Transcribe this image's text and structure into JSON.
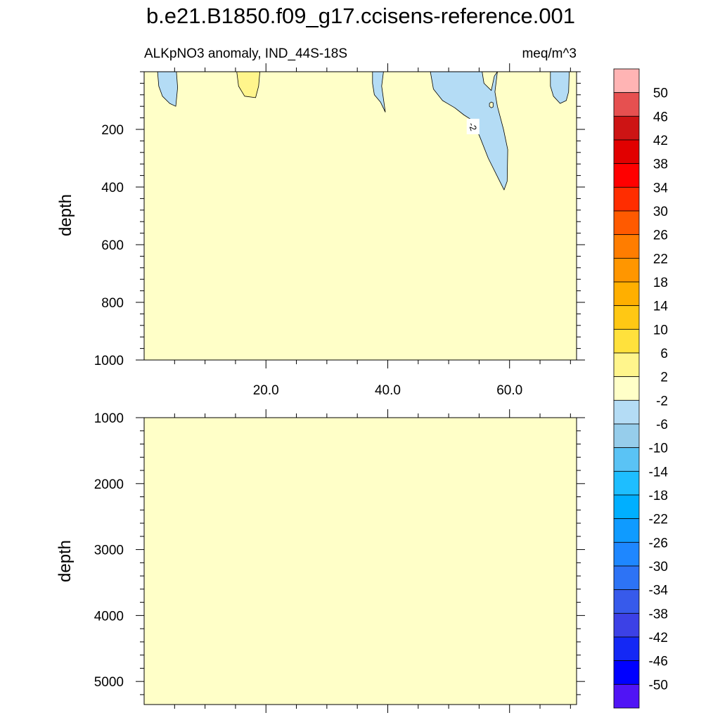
{
  "figure_title": "b.e21.B1850.f09_g17.ccisens-reference.001",
  "colors": {
    "background_fill": "#ffffc8",
    "contour_line": "#000000"
  },
  "chart_data": [
    {
      "type": "heatmap",
      "panel": "upper",
      "subtitle_left": "ALKpNO3 anomaly, IND_44S-18S",
      "subtitle_right": "meq/m^3",
      "ylabel": "depth",
      "xlabel": "",
      "xlim": [
        0,
        71
      ],
      "ylim": [
        1000,
        0
      ],
      "y_reversed": true,
      "x_ticks": [
        20,
        40,
        60
      ],
      "x_tick_labels": [
        "20.0",
        "40.0",
        "60.0"
      ],
      "y_ticks": [
        200,
        400,
        600,
        800,
        1000
      ],
      "y_tick_labels": [
        "200",
        "400",
        "600",
        "800",
        "1000"
      ],
      "contour_labels": [
        {
          "x": 54,
          "y": 190,
          "text": "-2"
        }
      ],
      "background_value_range": [
        -2,
        2
      ],
      "regions": [
        {
          "color": "#b4dcf5",
          "range": "-6 to -2",
          "points": [
            [
              2.2,
              0
            ],
            [
              5.3,
              0
            ],
            [
              5.5,
              55
            ],
            [
              5.2,
              120
            ],
            [
              4.2,
              110
            ],
            [
              3.0,
              85
            ],
            [
              2.4,
              50
            ],
            [
              2.2,
              0
            ]
          ]
        },
        {
          "color": "#fff58c",
          "range": "2 to 6",
          "points": [
            [
              15.2,
              0
            ],
            [
              19.0,
              0
            ],
            [
              18.8,
              50
            ],
            [
              18.3,
              90
            ],
            [
              16.5,
              85
            ],
            [
              15.5,
              50
            ],
            [
              15.2,
              0
            ]
          ]
        },
        {
          "color": "#b4dcf5",
          "range": "-6 to -2",
          "points": [
            [
              37.5,
              0
            ],
            [
              39.3,
              0
            ],
            [
              39.0,
              50
            ],
            [
              39.6,
              140
            ],
            [
              38.8,
              105
            ],
            [
              37.8,
              80
            ],
            [
              37.5,
              40
            ],
            [
              37.5,
              0
            ]
          ]
        },
        {
          "color": "#b4dcf5",
          "range": "-6 to -2",
          "points": [
            [
              47.0,
              0
            ],
            [
              55.5,
              0
            ],
            [
              55.8,
              40
            ],
            [
              57.0,
              65
            ],
            [
              57.5,
              15
            ],
            [
              58.0,
              0
            ],
            [
              57.6,
              70
            ],
            [
              58.0,
              120
            ],
            [
              59.0,
              200
            ],
            [
              59.7,
              270
            ],
            [
              59.6,
              380
            ],
            [
              59.1,
              410
            ],
            [
              56.5,
              300
            ],
            [
              55.2,
              230
            ],
            [
              54.0,
              170
            ],
            [
              52.5,
              150
            ],
            [
              51.0,
              125
            ],
            [
              49.0,
              100
            ],
            [
              47.5,
              60
            ],
            [
              47.0,
              0
            ]
          ]
        },
        {
          "color": "#b4dcf5",
          "range": "-6 to -2",
          "points": [
            [
              66.7,
              0
            ],
            [
              69.8,
              0
            ],
            [
              69.7,
              70
            ],
            [
              69.3,
              100
            ],
            [
              68.3,
              110
            ],
            [
              67.2,
              85
            ],
            [
              66.7,
              50
            ],
            [
              66.7,
              0
            ]
          ]
        }
      ],
      "islands": [
        {
          "color": "#ffffc8",
          "points": [
            [
              57.0,
              105
            ],
            [
              57.3,
              108
            ],
            [
              57.3,
              122
            ],
            [
              57.0,
              125
            ],
            [
              56.7,
              120
            ],
            [
              56.7,
              110
            ],
            [
              57.0,
              105
            ]
          ]
        }
      ]
    },
    {
      "type": "heatmap",
      "panel": "lower",
      "ylabel": "depth",
      "xlabel": "",
      "xlim": [
        0,
        71
      ],
      "ylim": [
        5350,
        1000
      ],
      "y_reversed": true,
      "x_ticks": [
        20,
        40,
        60
      ],
      "x_tick_labels": [
        "",
        "",
        ""
      ],
      "y_ticks": [
        1000,
        2000,
        3000,
        4000,
        5000
      ],
      "y_tick_labels": [
        "1000",
        "2000",
        "3000",
        "4000",
        "5000"
      ],
      "background_value_range": [
        -2,
        2
      ],
      "regions": []
    }
  ],
  "colorbar": {
    "levels": [
      "50",
      "46",
      "42",
      "38",
      "34",
      "30",
      "26",
      "22",
      "18",
      "14",
      "10",
      "6",
      "2",
      "-2",
      "-6",
      "-10",
      "-14",
      "-18",
      "-22",
      "-26",
      "-30",
      "-34",
      "-38",
      "-42",
      "-46",
      "-50"
    ],
    "colors": [
      "#ffb4b4",
      "#e65050",
      "#cd1414",
      "#e10000",
      "#ff0000",
      "#ff2d00",
      "#ff5a00",
      "#ff7d00",
      "#ff9600",
      "#ffaf00",
      "#ffc814",
      "#ffe13c",
      "#fff58c",
      "#ffffc8",
      "#b4dcf5",
      "#96cdeb",
      "#5ac3f5",
      "#1ebeff",
      "#00afff",
      "#0f9bff",
      "#1e87ff",
      "#2d73f5",
      "#375aeb",
      "#3c41e6",
      "#1428f5",
      "#0000ff",
      "#5014f5"
    ]
  }
}
